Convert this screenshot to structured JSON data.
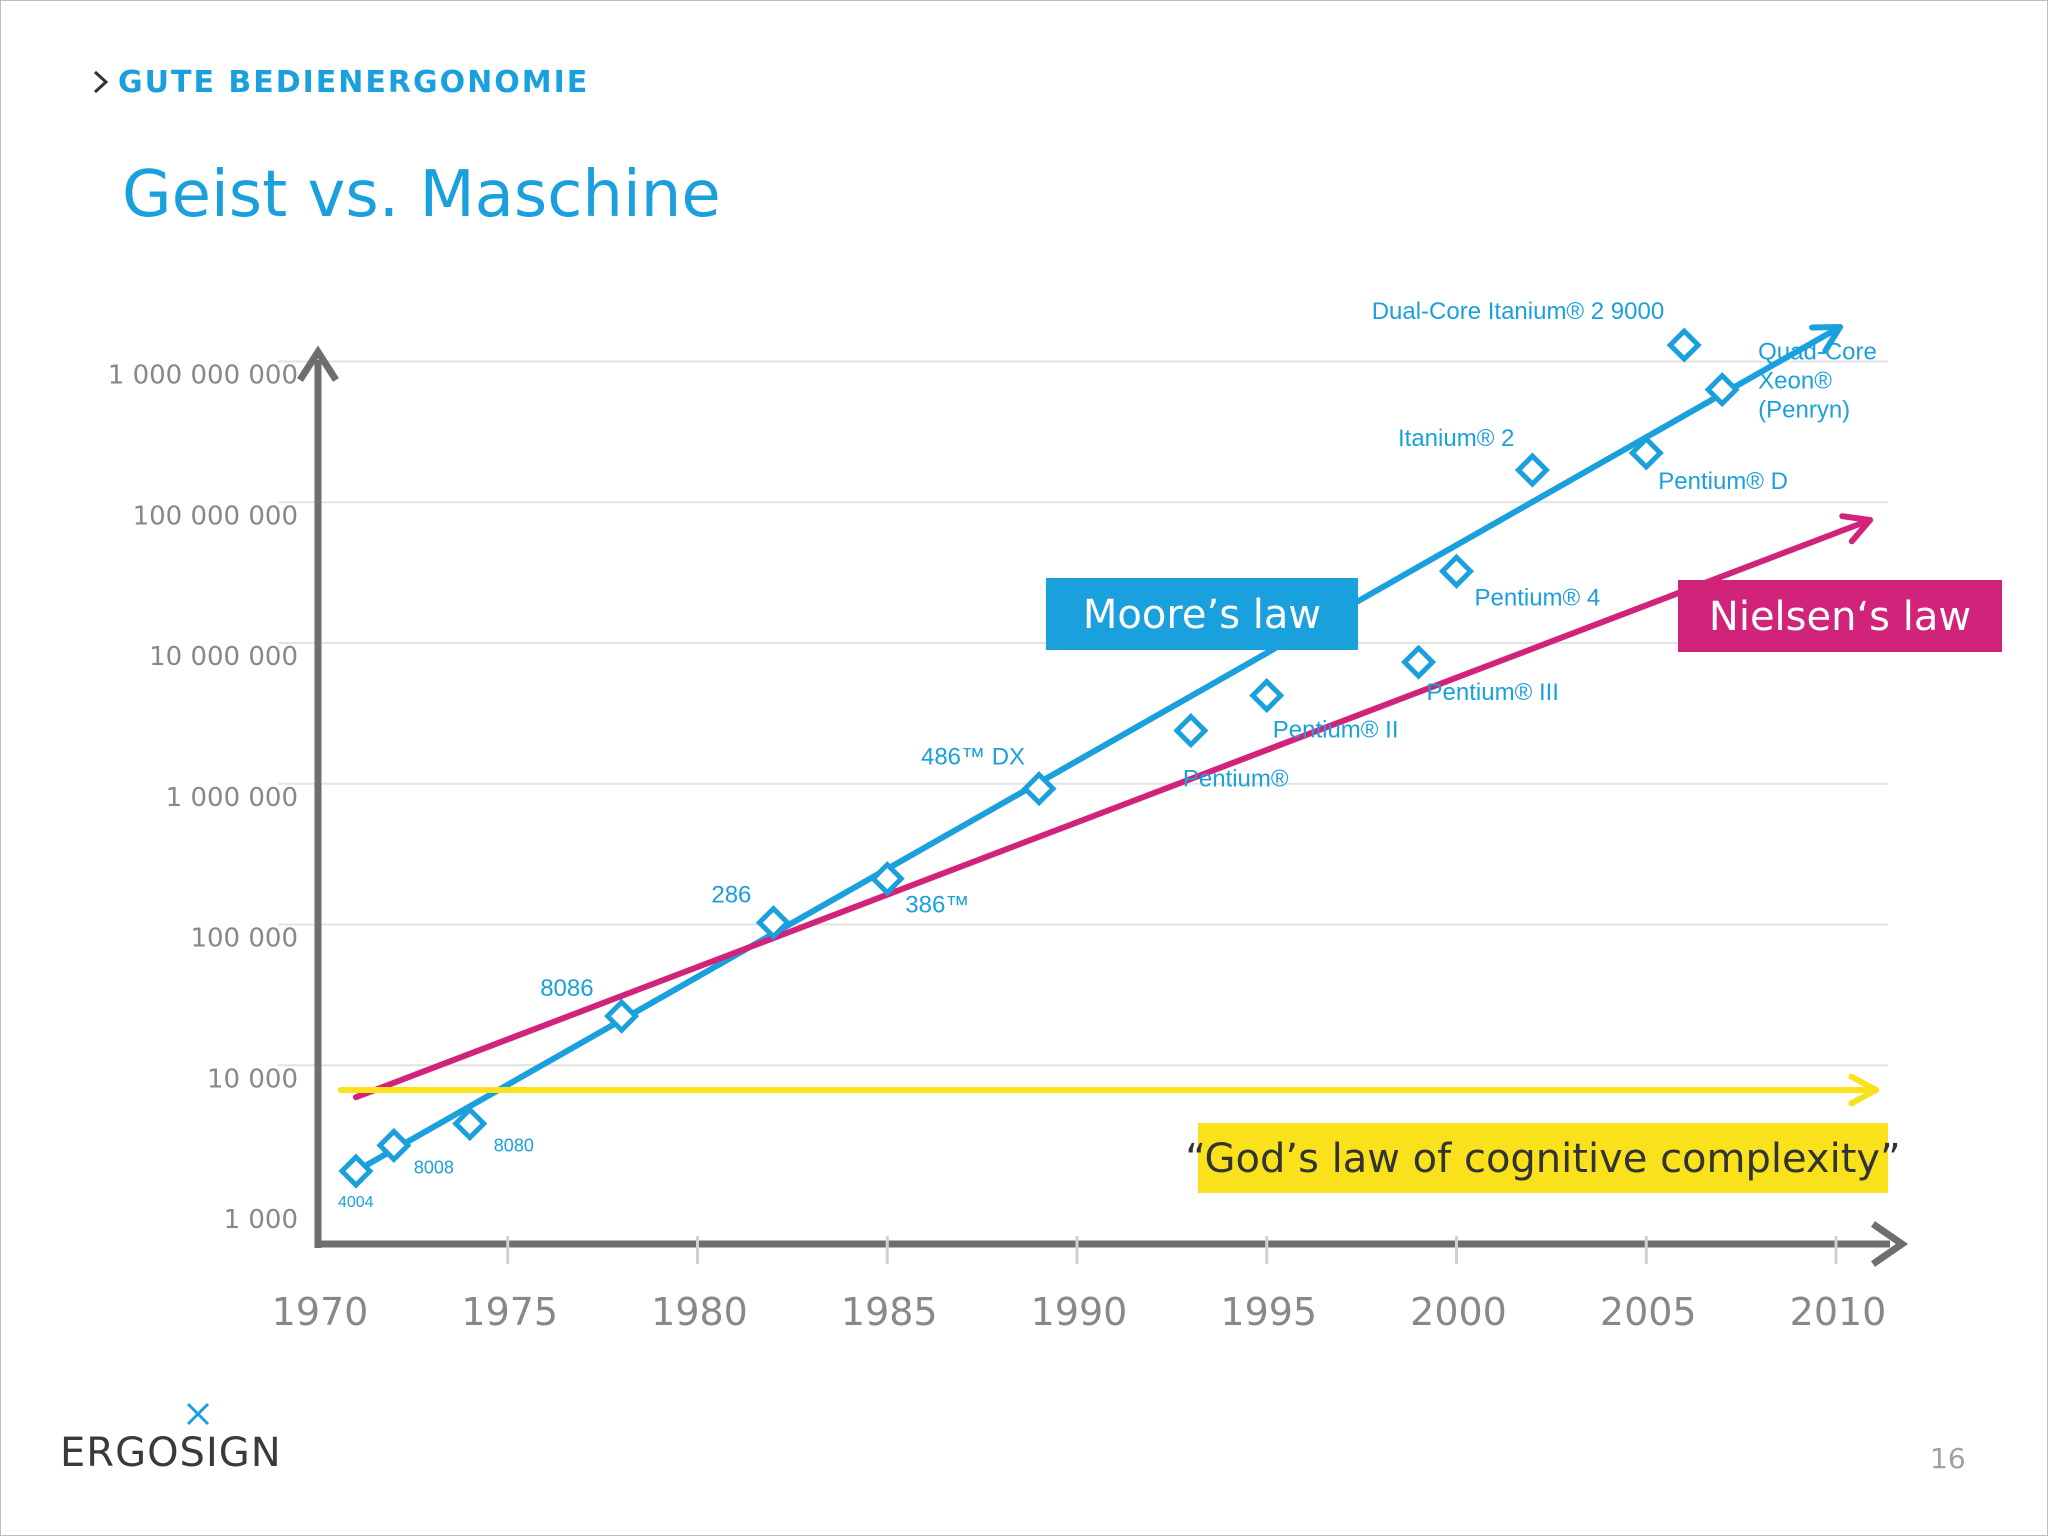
{
  "header": {
    "breadcrumb": "GUTE BEDIENERGONOMIE",
    "title": "Geist vs. Maschine"
  },
  "footer": {
    "logo_text": "ERGOSIGN",
    "page_number": "16"
  },
  "colors": {
    "blue": "#1aa0dc",
    "magenta": "#d1237a",
    "yellow": "#f9e21b",
    "axis": "#6e6e6e",
    "grid": "#e3e3e3",
    "tick_text": "#888888"
  },
  "chart_data": {
    "type": "scatter",
    "x_scale": "linear",
    "y_scale": "log",
    "xlim": [
      1970,
      2010
    ],
    "ylim": [
      1000,
      1000000000
    ],
    "grid": true,
    "x_ticks": [
      1970,
      1975,
      1980,
      1985,
      1990,
      1995,
      2000,
      2005,
      2010
    ],
    "x_tick_labels": [
      "1970",
      "1975",
      "1980",
      "1985",
      "1990",
      "1995",
      "2000",
      "2005",
      "2010"
    ],
    "y_ticks": [
      1000,
      10000,
      100000,
      1000000,
      10000000,
      100000000,
      1000000000
    ],
    "y_tick_labels": [
      "1 000",
      "10 000",
      "100 000",
      "1 000 000",
      "10 000 000",
      "100 000 000",
      "1 000 000 000"
    ],
    "points": [
      {
        "label": "4004",
        "x": 1971,
        "y": 2300
      },
      {
        "label": "8008",
        "x": 1972,
        "y": 3500
      },
      {
        "label": "8080",
        "x": 1974,
        "y": 5000
      },
      {
        "label": "8086",
        "x": 1978,
        "y": 29000
      },
      {
        "label": "286",
        "x": 1982,
        "y": 134000
      },
      {
        "label": "386™",
        "x": 1985,
        "y": 275000
      },
      {
        "label": "486™ DX",
        "x": 1989,
        "y": 1200000
      },
      {
        "label": "Pentium®",
        "x": 1993,
        "y": 3100000
      },
      {
        "label": "Pentium® II",
        "x": 1995,
        "y": 5500000
      },
      {
        "label": "Pentium® III",
        "x": 1999,
        "y": 9500000
      },
      {
        "label": "Pentium® 4",
        "x": 2000,
        "y": 42000000
      },
      {
        "label": "Itanium® 2",
        "x": 2002,
        "y": 220000000
      },
      {
        "label": "Pentium® D",
        "x": 2005,
        "y": 291000000
      },
      {
        "label": "Dual-Core Itanium® 2 9000",
        "x": 2006,
        "y": 1700000000
      },
      {
        "label": "Quad-Core Xeon® (Penryn)",
        "x": 2007,
        "y": 820000000
      }
    ],
    "trend_lines": [
      {
        "name": "Moore’s law",
        "color": "#1aa0dc",
        "from": [
          1971,
          2300
        ],
        "to": [
          2010,
          5000000000
        ]
      },
      {
        "name": "Nielsen‘s law",
        "color": "#d1237a",
        "from": [
          1971,
          7700
        ],
        "to": [
          2010,
          150000000
        ]
      },
      {
        "name": "“God’s law of cognitive complexity”",
        "color": "#f9e21b",
        "from": [
          1970.6,
          13000
        ],
        "to": [
          2010,
          13000
        ]
      }
    ]
  }
}
